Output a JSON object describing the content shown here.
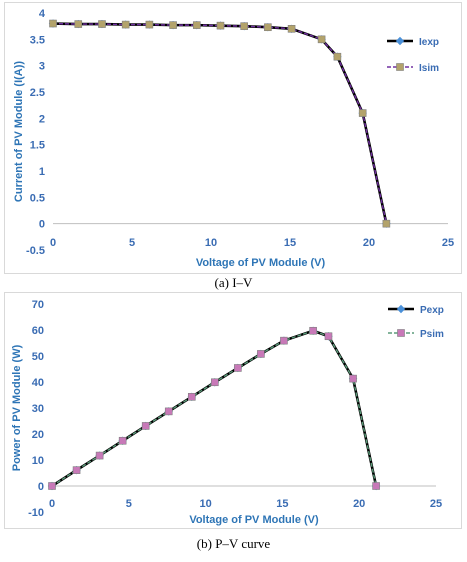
{
  "chart_data": [
    {
      "type": "line",
      "x": [
        0,
        1.6,
        3.1,
        4.6,
        6.1,
        7.6,
        9.1,
        10.6,
        12.1,
        13.6,
        15.1,
        17.0,
        18.0,
        19.6,
        21.1
      ],
      "series": [
        {
          "name": "Iexp",
          "values": [
            3.8,
            3.79,
            3.79,
            3.78,
            3.78,
            3.77,
            3.77,
            3.76,
            3.75,
            3.73,
            3.7,
            3.5,
            3.17,
            2.1,
            0
          ],
          "color": "#000000",
          "marker": "diamond",
          "marker_color": "#4a90d9"
        },
        {
          "name": "Isim",
          "values": [
            3.8,
            3.79,
            3.79,
            3.78,
            3.78,
            3.77,
            3.77,
            3.76,
            3.75,
            3.73,
            3.7,
            3.5,
            3.17,
            2.1,
            0
          ],
          "color": "#7030a0",
          "marker": "square",
          "marker_color": "#b3a36b"
        }
      ],
      "xlim": [
        0,
        25
      ],
      "ylim": [
        -0.5,
        4
      ],
      "xticks": [
        "0",
        "5",
        "10",
        "15",
        "20",
        "25"
      ],
      "yticks": [
        "-0.5",
        "0",
        "0.5",
        "1",
        "1.5",
        "2",
        "2.5",
        "3",
        "3.5",
        "4"
      ],
      "xlabel": "Voltage of PV Module (V)",
      "ylabel": "Current of PV Module (I(A))",
      "legend": "right",
      "caption": "(a) I–V"
    },
    {
      "type": "line",
      "x": [
        0,
        1.6,
        3.1,
        4.6,
        6.1,
        7.6,
        9.1,
        10.6,
        12.1,
        13.6,
        15.1,
        17.0,
        18.0,
        19.6,
        21.1
      ],
      "series": [
        {
          "name": "Pexp",
          "values": [
            0,
            6.1,
            11.7,
            17.4,
            23.1,
            28.7,
            34.3,
            39.9,
            45.4,
            50.8,
            55.9,
            59.7,
            57.6,
            41.3,
            0
          ],
          "color": "#000000",
          "marker": "diamond",
          "marker_color": "#4a90d9"
        },
        {
          "name": "Psim",
          "values": [
            0,
            6.1,
            11.7,
            17.4,
            23.1,
            28.7,
            34.3,
            39.9,
            45.4,
            50.8,
            55.9,
            59.7,
            57.6,
            41.3,
            0
          ],
          "color": "#5b9b7a",
          "marker": "square",
          "marker_color": "#c879b8"
        }
      ],
      "xlim": [
        0,
        25
      ],
      "ylim": [
        -10,
        70
      ],
      "xticks": [
        "0",
        "5",
        "10",
        "15",
        "20",
        "25"
      ],
      "yticks": [
        "-10",
        "0",
        "10",
        "20",
        "30",
        "40",
        "50",
        "60",
        "70"
      ],
      "xlabel": "Voltage of PV Module (V)",
      "ylabel": "Power of PV Module (W)",
      "legend": "right",
      "caption": "(b) P–V curve"
    }
  ]
}
